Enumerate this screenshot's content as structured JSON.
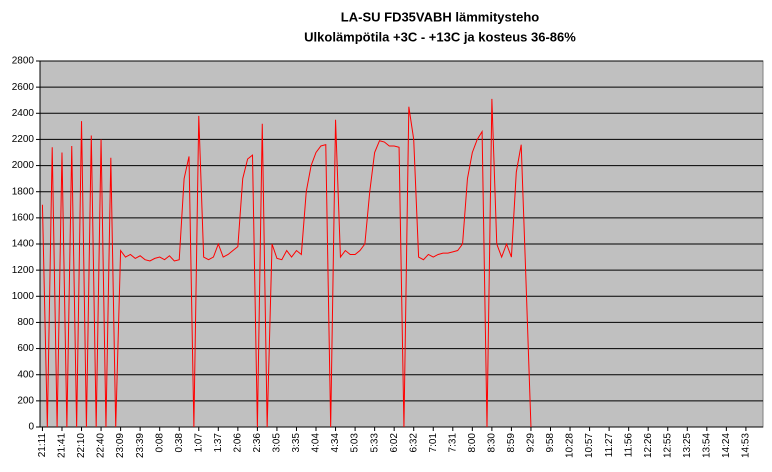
{
  "chart_data": {
    "type": "line",
    "title": "LA-SU FD35VABH lämmitysteho",
    "subtitle": "Ulkolämpötila  +3C - +13C ja kosteus 36-86%",
    "categories": [
      "21:11",
      null,
      null,
      null,
      "21:41",
      null,
      null,
      null,
      "22:10",
      null,
      null,
      null,
      "22:40",
      null,
      null,
      null,
      "23:09",
      null,
      null,
      null,
      "23:39",
      null,
      null,
      null,
      "0:08",
      null,
      null,
      null,
      "0:38",
      null,
      null,
      null,
      "1:07",
      null,
      null,
      null,
      "1:37",
      null,
      null,
      null,
      "2:06",
      null,
      null,
      null,
      "2:36",
      null,
      null,
      null,
      "3:05",
      null,
      null,
      null,
      "3:35",
      null,
      null,
      null,
      "4:04",
      null,
      null,
      null,
      "4:34",
      null,
      null,
      null,
      "5:03",
      null,
      null,
      null,
      "5:33",
      null,
      null,
      null,
      "6:02",
      null,
      null,
      null,
      "6:32",
      null,
      null,
      null,
      "7:01",
      null,
      null,
      null,
      "7:31",
      null,
      null,
      null,
      "8:00",
      null,
      null,
      null,
      "8:30",
      null,
      null,
      null,
      "8:59",
      null,
      null,
      null,
      "9:29",
      null,
      null,
      null,
      "9:58",
      null,
      null,
      null,
      "10:28",
      null,
      null,
      null,
      "10:57",
      null,
      null,
      null,
      "11:27",
      null,
      null,
      null,
      "11:56",
      null,
      null,
      null,
      "12:26",
      null,
      null,
      null,
      "12:55",
      null,
      null,
      null,
      "13:25",
      null,
      null,
      null,
      "13:54",
      null,
      null,
      null,
      "14:24",
      null,
      null,
      null,
      "14:53",
      null,
      null,
      null
    ],
    "series": [
      {
        "name": "lämmitysteho",
        "color": "#ff0000",
        "values": [
          1700,
          0,
          2140,
          0,
          2100,
          0,
          2150,
          0,
          2340,
          0,
          2230,
          0,
          2200,
          0,
          2060,
          0,
          1350,
          1300,
          1320,
          1290,
          1310,
          1280,
          1270,
          1290,
          1300,
          1280,
          1310,
          1270,
          1280,
          1900,
          2070,
          0,
          2380,
          1300,
          1280,
          1300,
          1400,
          1300,
          1320,
          1350,
          1380,
          1900,
          2050,
          2080,
          0,
          2320,
          0,
          1400,
          1290,
          1280,
          1350,
          1300,
          1350,
          1320,
          1800,
          2000,
          2100,
          2150,
          2160,
          0,
          2350,
          1300,
          1350,
          1320,
          1320,
          1350,
          1400,
          1800,
          2100,
          2190,
          2180,
          2150,
          2150,
          2140,
          0,
          2450,
          2200,
          1300,
          1280,
          1320,
          1300,
          1320,
          1330,
          1330,
          1340,
          1350,
          1400,
          1900,
          2100,
          2200,
          2260,
          0,
          2510,
          1400,
          1300,
          1400,
          1300,
          1950,
          2160,
          1100,
          0,
          null,
          null,
          null,
          null,
          null,
          null,
          null,
          null,
          null,
          null,
          null,
          null,
          null,
          null,
          null,
          null,
          null,
          null,
          null,
          null,
          null,
          null,
          null,
          null,
          null,
          null,
          null,
          null,
          null,
          null,
          null,
          null,
          null,
          null,
          null,
          null,
          null,
          null,
          null,
          null,
          null,
          null,
          null,
          null,
          null,
          null,
          null
        ]
      }
    ],
    "ylim": [
      0,
      2800
    ],
    "yticks": [
      0,
      200,
      400,
      600,
      800,
      1000,
      1200,
      1400,
      1600,
      1800,
      2000,
      2200,
      2400,
      2600,
      2800
    ],
    "grid": true
  }
}
